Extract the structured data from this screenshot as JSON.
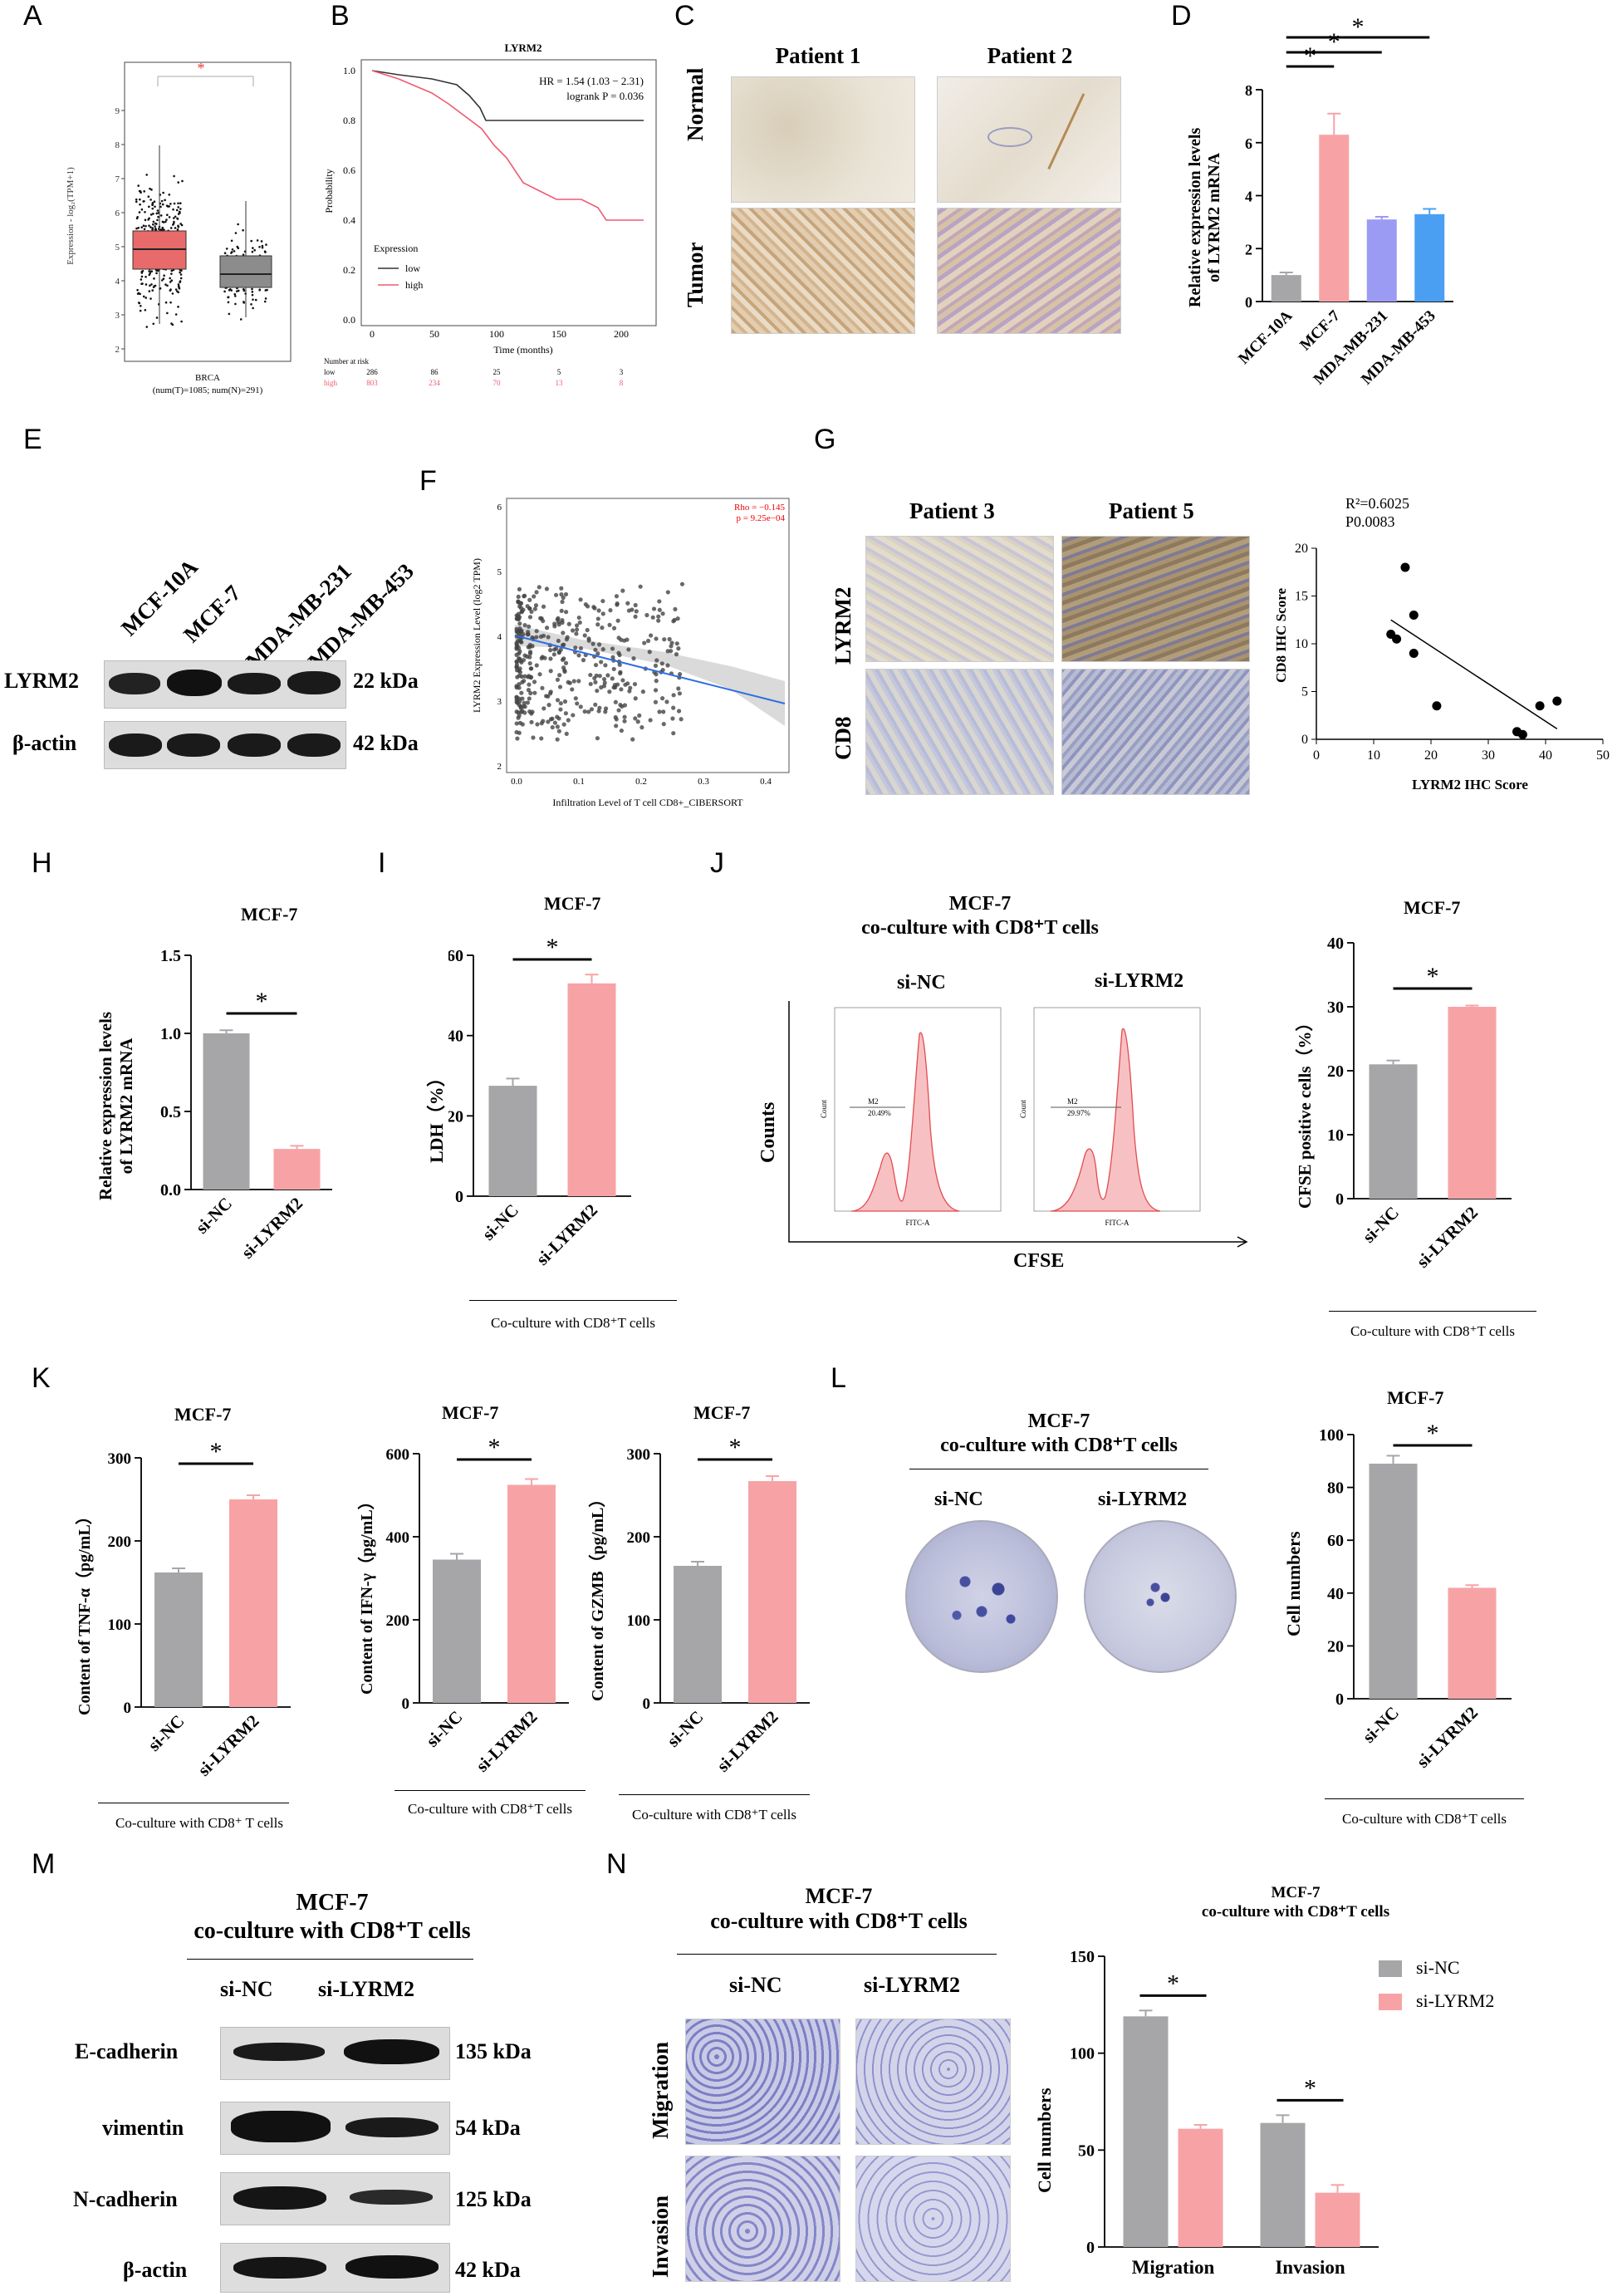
{
  "panel_labels": {
    "A": "A",
    "B": "B",
    "C": "C",
    "D": "D",
    "E": "E",
    "F": "F",
    "G": "G",
    "H": "H",
    "I": "I",
    "J": "J",
    "K": "K",
    "L": "L",
    "M": "M",
    "N": "N"
  },
  "colors": {
    "gray": "#a6a6a8",
    "pink": "#f7a3a6",
    "lpurple": "#9b9bf4",
    "blue": "#4b9ff2",
    "box_red": "#e86a6a",
    "box_gray": "#8c8c8c"
  },
  "panelA": {
    "ylabel": "Expression - log₂(TPM+1)",
    "xlabel": "BRCA",
    "xsub": "(num(T)=1085; num(N)=291)",
    "star": "*",
    "yticks": [
      "2",
      "3",
      "4",
      "5",
      "6",
      "7",
      "8",
      "9"
    ]
  },
  "panelB": {
    "title": "LYRM2",
    "hr": "HR = 1.54 (1.03 − 2.31)",
    "logrank": "logrank P = 0.036",
    "ylabel": "Probability",
    "xlabel": "Time (months)",
    "legend_title": "Expression",
    "legend_low": "low",
    "legend_high": "high",
    "risk_title": "Number at risk",
    "risk_low_label": "low",
    "risk_high_label": "high",
    "risk_low": [
      "286",
      "86",
      "25",
      "5",
      "3"
    ],
    "risk_high": [
      "803",
      "234",
      "70",
      "13",
      "8"
    ],
    "yticks": [
      "0.0",
      "0.2",
      "0.4",
      "0.6",
      "0.8",
      "1.0"
    ],
    "xticks": [
      "0",
      "50",
      "100",
      "150",
      "200"
    ]
  },
  "panelC": {
    "col1": "Patient 1",
    "col2": "Patient 2",
    "row1": "Normal",
    "row2": "Tumor"
  },
  "panelD": {
    "ylabel1": "Relative expression levels",
    "ylabel2": "of LYRM2 mRNA",
    "star": "*"
  },
  "panelE": {
    "lanes": [
      "MCF-10A",
      "MCF-7",
      "MDA-MB-231",
      "MDA-MB-453"
    ],
    "row1": "LYRM2",
    "row2": "β-actin",
    "kda1": "22 kDa",
    "kda2": "42 kDa"
  },
  "panelF": {
    "rho": "Rho = −0.145",
    "p": "p = 9.25e−04",
    "ylabel": "LYRM2 Expression Level (log2 TPM)",
    "xlabel": "Infiltration Level of T cell CD8+_CIBERSORT"
  },
  "panelG": {
    "col1": "Patient 3",
    "col2": "Patient 5",
    "row1": "LYRM2",
    "row2": "CD8",
    "r2": "R²=0.6025",
    "p": "P0.0083",
    "ylabel": "CD8 IHC Score",
    "xlabel": "LYRM2 IHC Score"
  },
  "panelH": {
    "title": "MCF-7",
    "ylabel1": "Relative expression levels",
    "ylabel2": "of LYRM2 mRNA",
    "star": "*"
  },
  "panelI": {
    "title": "MCF-7",
    "ylabel": "LDH（%）",
    "star": "*",
    "footer": "Co-culture with CD8⁺T cells"
  },
  "panelJ": {
    "title1": "MCF-7",
    "title2": "co-culture with CD8⁺T cells",
    "hist1": "si-NC",
    "hist2": "si-LYRM2",
    "gate1": "M2",
    "gate1val": "20.49%",
    "gate2": "M2",
    "gate2val": "29.97%",
    "yaxis": "Counts",
    "xaxis": "CFSE",
    "xaxis_small": "FITC-A",
    "yaxis_small": "Count",
    "bar_title": "MCF-7",
    "bar_ylabel": "CFSE positive cells（%）",
    "star": "*",
    "footer": "Co-culture with CD8⁺T cells"
  },
  "panelK": {
    "t1": "MCF-7",
    "t2": "MCF-7",
    "t3": "MCF-7",
    "y1": "Content of TNF-α（pg/mL）",
    "y2": "Content of IFN-γ（pg/mL）",
    "y3": "Content of GZMB（pg/mL）",
    "star": "*",
    "f1": "Co-culture  with CD8⁺ T cells",
    "f2": "Co-culture with CD8⁺T cells",
    "f3": "Co-culture with CD8⁺T cells"
  },
  "panelL": {
    "title1": "MCF-7",
    "title2": "co-culture with CD8⁺T cells",
    "dish1": "si-NC",
    "dish2": "si-LYRM2",
    "bar_title": "MCF-7",
    "bar_ylabel": "Cell numbers",
    "star": "*",
    "footer": "Co-culture with CD8⁺T cells"
  },
  "panelM": {
    "title1": "MCF-7",
    "title2": "co-culture with CD8⁺T cells",
    "lane1": "si-NC",
    "lane2": "si-LYRM2",
    "rows": [
      "E-cadherin",
      "vimentin",
      "N-cadherin",
      "β-actin"
    ],
    "kdas": [
      "135 kDa",
      "54 kDa",
      "125 kDa",
      "42 kDa"
    ]
  },
  "panelN": {
    "title1": "MCF-7",
    "title2": "co-culture with CD8⁺T cells",
    "col1": "si-NC",
    "col2": "si-LYRM2",
    "row1": "Migration",
    "row2": "Invasion",
    "chart_title1": "MCF-7",
    "chart_title2": "co-culture with CD8⁺T cells",
    "ylabel": "Cell numbers",
    "legend1": "si-NC",
    "legend2": "si-LYRM2",
    "star": "*"
  },
  "chart_data": [
    {
      "id": "D",
      "type": "bar",
      "categories": [
        "MCF-10A",
        "MCF-7",
        "MDA-MB-231",
        "MDA-MB-453"
      ],
      "values": [
        1.0,
        6.3,
        3.1,
        3.3
      ],
      "errors": [
        0.1,
        0.8,
        0.1,
        0.2
      ],
      "ylim": [
        0,
        8
      ],
      "yticks": [
        "0",
        "2",
        "4",
        "6",
        "8"
      ]
    },
    {
      "id": "H",
      "type": "bar",
      "categories": [
        "si-NC",
        "si-LYRM2"
      ],
      "values": [
        1.0,
        0.26
      ],
      "errors": [
        0.02,
        0.02
      ],
      "ylim": [
        0,
        1.5
      ],
      "yticks": [
        "0.0",
        "0.5",
        "1.0",
        "1.5"
      ]
    },
    {
      "id": "I",
      "type": "bar",
      "categories": [
        "si-NC",
        "si-LYRM2"
      ],
      "values": [
        27.5,
        53
      ],
      "errors": [
        1.8,
        2.2
      ],
      "ylim": [
        0,
        60
      ],
      "yticks": [
        "0",
        "20",
        "40",
        "60"
      ]
    },
    {
      "id": "J",
      "type": "bar",
      "categories": [
        "si-NC",
        "si-LYRM2"
      ],
      "values": [
        21,
        30
      ],
      "errors": [
        0.6,
        0.2
      ],
      "ylim": [
        0,
        40
      ],
      "yticks": [
        "0",
        "10",
        "20",
        "30",
        "40"
      ]
    },
    {
      "id": "K1",
      "type": "bar",
      "categories": [
        "si-NC",
        "si-LYRM2"
      ],
      "values": [
        162,
        250
      ],
      "errors": [
        5,
        5
      ],
      "ylim": [
        0,
        300
      ],
      "yticks": [
        "0",
        "100",
        "200",
        "300"
      ]
    },
    {
      "id": "K2",
      "type": "bar",
      "categories": [
        "si-NC",
        "si-LYRM2"
      ],
      "values": [
        345,
        525
      ],
      "errors": [
        14,
        14
      ],
      "ylim": [
        0,
        600
      ],
      "yticks": [
        "0",
        "200",
        "400",
        "600"
      ]
    },
    {
      "id": "K3",
      "type": "bar",
      "categories": [
        "si-NC",
        "si-LYRM2"
      ],
      "values": [
        165,
        267
      ],
      "errors": [
        5,
        6
      ],
      "ylim": [
        0,
        300
      ],
      "yticks": [
        "0",
        "100",
        "200",
        "300"
      ]
    },
    {
      "id": "L",
      "type": "bar",
      "categories": [
        "si-NC",
        "si-LYRM2"
      ],
      "values": [
        89,
        42
      ],
      "errors": [
        3,
        1
      ],
      "ylim": [
        0,
        100
      ],
      "yticks": [
        "0",
        "20",
        "40",
        "60",
        "80",
        "100"
      ]
    },
    {
      "id": "N",
      "type": "bar",
      "categories": [
        "Migration",
        "Invasion"
      ],
      "series": [
        {
          "name": "si-NC",
          "values": [
            119,
            64
          ],
          "errors": [
            3,
            4
          ]
        },
        {
          "name": "si-LYRM2",
          "values": [
            61,
            28
          ],
          "errors": [
            2,
            4
          ]
        }
      ],
      "ylim": [
        0,
        150
      ],
      "yticks": [
        "0",
        "50",
        "100",
        "150"
      ]
    },
    {
      "id": "G",
      "type": "scatter",
      "points": [
        [
          13,
          11
        ],
        [
          14,
          10.5
        ],
        [
          15.5,
          18
        ],
        [
          17,
          13
        ],
        [
          17,
          9
        ],
        [
          21,
          3.5
        ],
        [
          35,
          0.8
        ],
        [
          36,
          0.5
        ],
        [
          39,
          3.5
        ],
        [
          42,
          4
        ]
      ],
      "fit": [
        [
          13,
          12.5
        ],
        [
          42,
          1.1
        ]
      ],
      "xlim": [
        0,
        50
      ],
      "ylim": [
        0,
        20
      ],
      "xticks": [
        "0",
        "10",
        "20",
        "30",
        "40",
        "50"
      ],
      "yticks": [
        "0",
        "5",
        "10",
        "15",
        "20"
      ]
    }
  ]
}
